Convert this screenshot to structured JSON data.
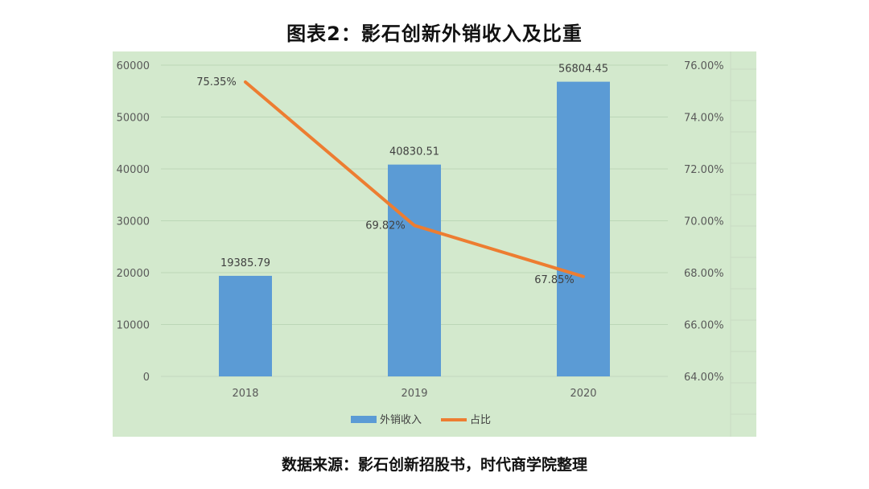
{
  "title": "图表2：影石创新外销收入及比重",
  "source": "数据来源：影石创新招股书，时代商学院整理",
  "colors": {
    "plot_bg": "#d3e9cd",
    "bar": "#5b9bd5",
    "line": "#ed7d31",
    "grid": "#bcd7b7"
  },
  "chart_data": {
    "type": "bar",
    "categories": [
      "2018",
      "2019",
      "2020"
    ],
    "series": [
      {
        "name": "外销收入",
        "type": "bar",
        "axis": "left",
        "values": [
          19385.79,
          40830.51,
          56804.45
        ],
        "labels": [
          "19385.79",
          "40830.51",
          "56804.45"
        ]
      },
      {
        "name": "占比",
        "type": "line",
        "axis": "right",
        "values": [
          75.35,
          69.82,
          67.85
        ],
        "labels": [
          "75.35%",
          "69.82%",
          "67.85%"
        ]
      }
    ],
    "ylim": [
      0,
      60000
    ],
    "y_ticks": [
      "0",
      "10000",
      "20000",
      "30000",
      "40000",
      "50000",
      "60000"
    ],
    "y2lim": [
      64,
      76
    ],
    "y2_ticks": [
      "64.00%",
      "66.00%",
      "68.00%",
      "70.00%",
      "72.00%",
      "74.00%",
      "76.00%"
    ],
    "legend": {
      "position": "bottom",
      "entries": [
        "外销收入",
        "占比"
      ]
    },
    "grid": true
  }
}
